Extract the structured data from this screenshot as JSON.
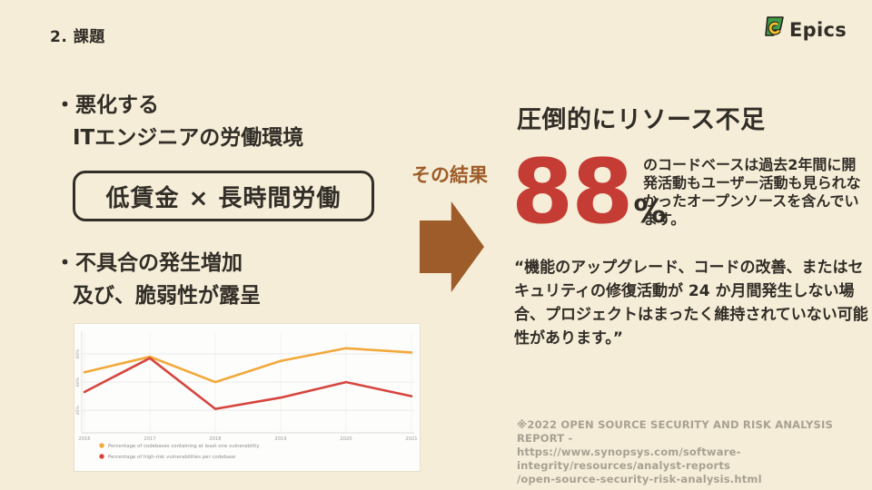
{
  "colors": {
    "bg": "#f5edd7",
    "dark": "#312d27",
    "brown": "#9d5c29",
    "red": "#c53c34",
    "gray": "#a8a193",
    "logo_green": "#3f9e49",
    "logo_yellow": "#f2c12e"
  },
  "header": {
    "title": "2. 課題",
    "logo_text": "Epics"
  },
  "left": {
    "bullet1_line1": "・悪化する",
    "bullet1_line2": "ITエンジニアの労働環境",
    "box_label": "低賃金 × 長時間労働",
    "bullet2_line1": "・不具合の発生増加",
    "bullet2_line2": "及び、脆弱性が露呈"
  },
  "middle": {
    "result_label": "その結果"
  },
  "right": {
    "heading": "圧倒的にリソース不足",
    "stat_value": "88",
    "stat_unit": "%",
    "stat_desc": "のコードベースは過去2年間に開発活動もユーザー活動も見られなかったオープンソースを含んでいます。",
    "quote": "“機能のアップグレード、コードの改善、またはセキュリティの修復活動が 24 か月間発生しない場合、プロジェクトはまったく維持されていない可能性があります。”",
    "citation": [
      "※2022 OPEN SOURCE SECURITY AND RISK ANALYSIS REPORT -",
      "https://www.synopsys.com/software-integrity/resources/analyst-reports",
      "/open-source-security-risk-analysis.html"
    ]
  },
  "chart_data": {
    "type": "line",
    "x": [
      2016,
      2017,
      2018,
      2019,
      2020,
      2021
    ],
    "series": [
      {
        "name": "Percentage of codebases containing at least one vulnerability",
        "color": "#f2a93b",
        "values": [
          67,
          78,
          60,
          75,
          84,
          81
        ]
      },
      {
        "name": "Percentage of high-risk vulnerabilities per codebase",
        "color": "#d6453d",
        "values": [
          53,
          77,
          41,
          49,
          60,
          50
        ]
      }
    ],
    "yticks": [
      40,
      60,
      80
    ],
    "ytick_labels": [
      "40%",
      "60%",
      "80%"
    ],
    "ylim": [
      30,
      95
    ],
    "grid": true,
    "legend_position": "bottom-left",
    "tick_color": "#9b9b9b",
    "grid_color": "#ebebeb"
  }
}
